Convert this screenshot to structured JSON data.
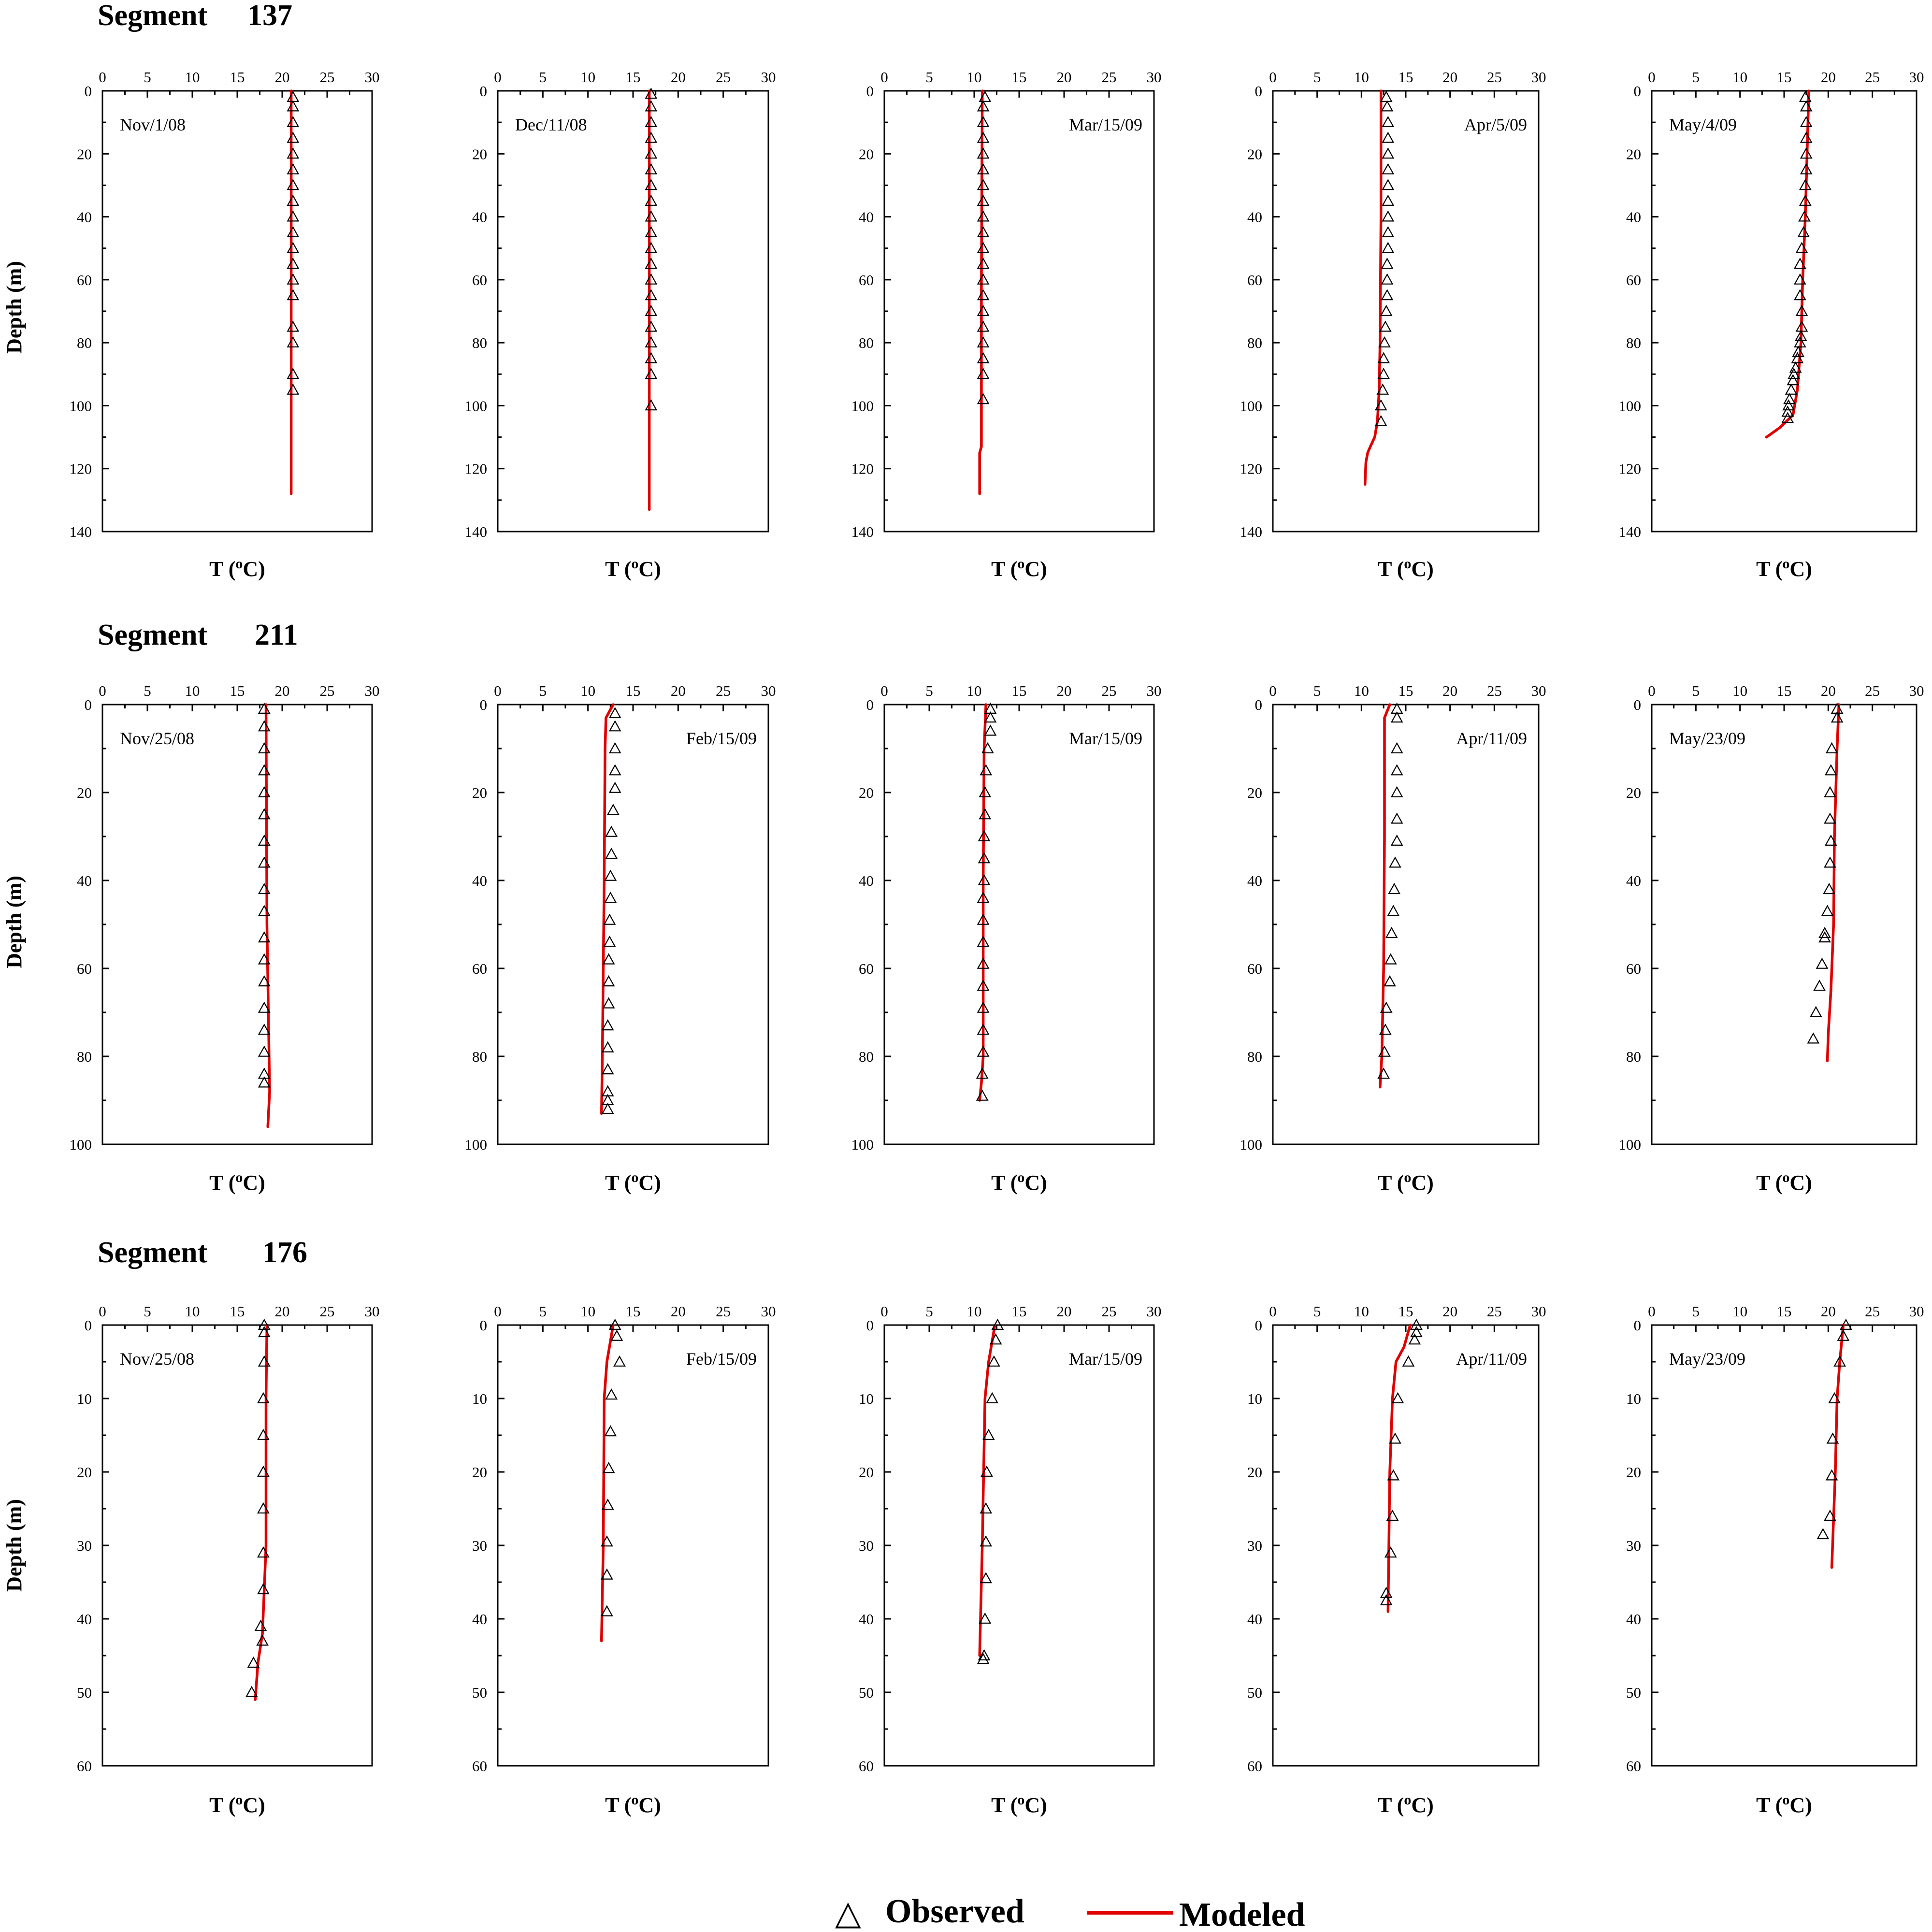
{
  "legend": {
    "observed": "Observed",
    "modeled": "Modeled",
    "observed_marker": "△"
  },
  "axis_text": {
    "xlabel_T": "T",
    "xlabel_paren_open": "(",
    "xlabel_sup": "o",
    "xlabel_unit": "C)",
    "ylabel": "Depth (m)"
  },
  "colors": {
    "modeled": "#e00000",
    "observed": "#000000"
  },
  "chart_data": [
    {
      "type": "line",
      "segment_label": "Segment",
      "segment_number": "137",
      "xlim": [
        0,
        30
      ],
      "ylim": [
        0,
        140
      ],
      "xticks": [
        0,
        5,
        10,
        15,
        20,
        25,
        30
      ],
      "yticks": [
        0,
        20,
        40,
        60,
        80,
        100,
        120,
        140
      ],
      "xlabel": "T (°C)",
      "ylabel": "Depth (m)",
      "panels": [
        {
          "date": "Nov/1/08",
          "date_pos": "left",
          "observed": {
            "T": [
              21.2,
              21.2,
              21.2,
              21.2,
              21.2,
              21.2,
              21.2,
              21.2,
              21.2,
              21.2,
              21.2,
              21.2,
              21.2,
              21.2,
              21.2,
              21.2,
              21.2,
              21.2
            ],
            "depth": [
              2,
              5,
              10,
              15,
              20,
              25,
              30,
              35,
              40,
              45,
              50,
              55,
              60,
              65,
              75,
              80,
              90,
              95
            ]
          },
          "modeled": {
            "T": [
              21,
              21,
              21
            ],
            "depth": [
              0,
              60,
              128
            ]
          }
        },
        {
          "date": "Dec/11/08",
          "date_pos": "left",
          "observed": {
            "T": [
              17,
              17,
              17,
              17,
              17,
              17,
              17,
              17,
              17,
              17,
              17,
              17,
              17,
              17,
              17,
              17,
              17,
              17,
              17,
              17
            ],
            "depth": [
              1,
              5,
              10,
              15,
              20,
              25,
              30,
              35,
              40,
              45,
              50,
              55,
              60,
              65,
              70,
              75,
              80,
              85,
              90,
              100
            ]
          },
          "modeled": {
            "T": [
              16.8,
              16.8
            ],
            "depth": [
              0,
              133
            ]
          }
        },
        {
          "date": "Mar/15/09",
          "date_pos": "right",
          "observed": {
            "T": [
              11.2,
              11,
              11,
              11,
              11,
              11,
              11,
              11,
              11,
              11,
              11,
              11,
              11,
              11,
              11,
              11,
              11,
              11,
              11,
              11
            ],
            "depth": [
              2,
              5,
              10,
              15,
              20,
              25,
              30,
              35,
              40,
              45,
              50,
              55,
              60,
              65,
              70,
              75,
              80,
              85,
              90,
              98
            ]
          },
          "modeled": {
            "T": [
              10.9,
              10.8,
              10.8,
              10.6,
              10.6
            ],
            "depth": [
              0,
              60,
              113,
              115,
              128
            ]
          }
        },
        {
          "date": "Apr/5/09",
          "date_pos": "right",
          "observed": {
            "T": [
              12.8,
              12.9,
              13,
              13,
              13,
              13,
              13,
              13,
              13,
              13,
              13,
              12.9,
              12.9,
              12.9,
              12.8,
              12.7,
              12.6,
              12.5,
              12.5,
              12.4,
              12.2,
              12.2
            ],
            "depth": [
              2,
              5,
              10,
              15,
              20,
              25,
              30,
              35,
              40,
              45,
              50,
              55,
              60,
              65,
              70,
              75,
              80,
              85,
              90,
              95,
              100,
              105
            ]
          },
          "modeled": {
            "T": [
              12.2,
              12.2,
              12.1,
              12,
              11.9,
              11.8,
              11.5,
              11,
              10.7,
              10.5,
              10.4
            ],
            "depth": [
              0,
              40,
              80,
              95,
              100,
              105,
              110,
              113,
              115,
              118,
              125
            ]
          }
        },
        {
          "date": "May/4/09",
          "date_pos": "left",
          "observed": {
            "T": [
              17.4,
              17.5,
              17.5,
              17.5,
              17.5,
              17.5,
              17.4,
              17.4,
              17.3,
              17.2,
              17,
              16.8,
              16.8,
              16.8,
              17,
              17,
              16.9,
              16.8,
              16.6,
              16.5,
              16.3,
              16.1,
              16,
              15.8,
              15.6,
              15.5,
              15.4,
              15.4
            ],
            "depth": [
              2,
              5,
              10,
              15,
              20,
              25,
              30,
              35,
              40,
              45,
              50,
              55,
              60,
              65,
              70,
              75,
              78,
              80,
              83,
              85,
              88,
              90,
              92,
              95,
              98,
              100,
              102,
              104
            ]
          },
          "modeled": {
            "T": [
              17.8,
              17.6,
              17.4,
              17.1,
              16.9,
              16.5,
              16,
              14.5,
              13
            ],
            "depth": [
              0,
              20,
              40,
              60,
              80,
              95,
              103,
              107,
              110
            ]
          }
        }
      ]
    },
    {
      "type": "line",
      "segment_label": "Segment",
      "segment_number": "211",
      "xlim": [
        0,
        30
      ],
      "ylim": [
        0,
        100
      ],
      "xticks": [
        0,
        5,
        10,
        15,
        20,
        25,
        30
      ],
      "yticks": [
        0,
        20,
        40,
        60,
        80,
        100
      ],
      "xlabel": "T (°C)",
      "ylabel": "Depth (m)",
      "panels": [
        {
          "date": "Nov/25/08",
          "date_pos": "left",
          "observed": {
            "T": [
              18,
              18,
              18,
              18,
              18,
              18,
              18,
              18,
              18,
              18,
              18,
              18,
              18,
              18,
              18,
              18,
              18,
              18
            ],
            "depth": [
              1,
              5,
              10,
              15,
              20,
              25,
              31,
              36,
              42,
              47,
              53,
              58,
              63,
              69,
              74,
              79,
              84,
              86
            ]
          },
          "modeled": {
            "T": [
              18.2,
              18.3,
              18.6,
              18.4
            ],
            "depth": [
              0,
              50,
              88,
              96
            ]
          }
        },
        {
          "date": "Feb/15/09",
          "date_pos": "right",
          "observed": {
            "T": [
              13,
              13,
              13,
              13,
              13,
              12.8,
              12.6,
              12.6,
              12.5,
              12.5,
              12.4,
              12.4,
              12.3,
              12.3,
              12.3,
              12.2,
              12.2,
              12.2,
              12.2,
              12.2,
              12.2
            ],
            "depth": [
              2,
              5,
              10,
              15,
              19,
              24,
              29,
              34,
              39,
              44,
              49,
              54,
              58,
              63,
              68,
              73,
              78,
              83,
              88,
              92,
              90
            ]
          },
          "modeled": {
            "T": [
              12.8,
              12,
              11.9,
              11.8,
              11.6,
              11.5
            ],
            "depth": [
              0,
              3,
              10,
              40,
              80,
              93
            ]
          }
        },
        {
          "date": "Mar/15/09",
          "date_pos": "right",
          "observed": {
            "T": [
              11.8,
              11.8,
              11.8,
              11.5,
              11.3,
              11.2,
              11.2,
              11.1,
              11.1,
              11.1,
              11,
              11,
              11,
              11,
              11,
              11,
              11,
              11,
              10.9,
              10.9
            ],
            "depth": [
              1,
              3,
              6,
              10,
              15,
              20,
              25,
              30,
              35,
              40,
              44,
              49,
              54,
              59,
              64,
              69,
              74,
              79,
              84,
              89
            ]
          },
          "modeled": {
            "T": [
              11.3,
              11.1,
              11,
              11,
              10.8,
              10.6
            ],
            "depth": [
              0,
              10,
              40,
              80,
              86,
              90
            ]
          }
        },
        {
          "date": "Apr/11/09",
          "date_pos": "right",
          "observed": {
            "T": [
              14,
              14,
              14,
              14,
              14,
              14,
              14,
              13.8,
              13.7,
              13.6,
              13.4,
              13.3,
              13.2,
              12.8,
              12.7,
              12.6,
              12.5
            ],
            "depth": [
              1,
              3,
              10,
              15,
              20,
              26,
              31,
              36,
              42,
              47,
              52,
              58,
              63,
              69,
              74,
              79,
              84
            ]
          },
          "modeled": {
            "T": [
              13.2,
              12.6,
              12.6,
              12.5,
              12.3,
              12.1
            ],
            "depth": [
              0,
              3,
              30,
              60,
              80,
              87
            ]
          }
        },
        {
          "date": "May/23/09",
          "date_pos": "left",
          "observed": {
            "T": [
              21,
              21,
              20.4,
              20.3,
              20.2,
              20.2,
              20.3,
              20.2,
              20.1,
              19.9,
              19.6,
              19.6,
              19.3,
              19,
              18.6,
              18.3
            ],
            "depth": [
              1,
              3,
              10,
              15,
              20,
              26,
              31,
              36,
              42,
              47,
              52,
              53,
              59,
              64,
              70,
              76
            ]
          },
          "modeled": {
            "T": [
              21.2,
              21,
              20.7,
              20.6,
              20.3,
              20,
              19.9
            ],
            "depth": [
              0,
              10,
              30,
              50,
              65,
              75,
              81
            ]
          }
        }
      ]
    },
    {
      "type": "line",
      "segment_label": "Segment",
      "segment_number": "176",
      "xlim": [
        0,
        30
      ],
      "ylim": [
        0,
        60
      ],
      "xticks": [
        0,
        5,
        10,
        15,
        20,
        25,
        30
      ],
      "yticks": [
        0,
        10,
        20,
        30,
        40,
        50,
        60
      ],
      "xlabel": "T (°C)",
      "ylabel": "Depth (m)",
      "panels": [
        {
          "date": "Nov/25/08",
          "date_pos": "left",
          "observed": {
            "T": [
              18,
              18,
              18,
              17.9,
              17.9,
              17.9,
              17.9,
              17.9,
              17.9,
              17.8,
              17.6,
              16.8,
              16.6
            ],
            "depth": [
              0,
              1,
              5,
              10,
              15,
              20,
              25,
              31,
              36,
              43,
              41,
              46,
              50
            ]
          },
          "modeled": {
            "T": [
              18.3,
              18.2,
              18.2,
              17.8,
              17.3,
              17
            ],
            "depth": [
              0,
              10,
              30,
              42,
              46,
              51
            ]
          }
        },
        {
          "date": "Feb/15/09",
          "date_pos": "right",
          "observed": {
            "T": [
              13,
              13.2,
              13.5,
              12.6,
              12.5,
              12.3,
              12.2,
              12.1,
              12.1,
              12.1
            ],
            "depth": [
              0,
              1.5,
              5,
              9.5,
              14.5,
              19.5,
              24.5,
              29.5,
              34,
              39
            ]
          },
          "modeled": {
            "T": [
              12.8,
              12.1,
              11.8,
              11.7,
              11.5
            ],
            "depth": [
              0,
              5,
              10,
              30,
              43
            ]
          }
        },
        {
          "date": "Mar/15/09",
          "date_pos": "right",
          "observed": {
            "T": [
              12.6,
              12.4,
              12.2,
              12,
              11.6,
              11.4,
              11.3,
              11.3,
              11.3,
              11.2,
              11.1,
              11
            ],
            "depth": [
              0,
              2,
              5,
              10,
              15,
              20,
              25,
              29.5,
              34.5,
              40,
              45,
              45.5
            ]
          },
          "modeled": {
            "T": [
              12.3,
              11.6,
              11.2,
              10.9,
              10.6
            ],
            "depth": [
              0,
              5,
              10,
              30,
              45
            ]
          }
        },
        {
          "date": "Apr/11/09",
          "date_pos": "right",
          "observed": {
            "T": [
              16.2,
              16.2,
              16,
              15.3,
              14.1,
              13.8,
              13.6,
              13.5,
              13.3,
              12.8,
              12.8
            ],
            "depth": [
              0,
              1,
              2,
              5,
              10,
              15.5,
              20.5,
              26,
              31,
              36.5,
              37.5
            ]
          },
          "modeled": {
            "T": [
              15.5,
              14.8,
              13.9,
              13.5,
              13.2,
              13
            ],
            "depth": [
              0,
              3,
              5,
              10,
              20,
              39
            ]
          }
        },
        {
          "date": "May/23/09",
          "date_pos": "left",
          "observed": {
            "T": [
              22,
              21.7,
              21.3,
              20.7,
              20.5,
              20.4,
              20.2,
              19.4
            ],
            "depth": [
              0,
              1.5,
              5,
              10,
              15.5,
              20.5,
              26,
              28.5
            ]
          },
          "modeled": {
            "T": [
              21.7,
              21.3,
              21,
              20.8,
              20.4
            ],
            "depth": [
              0,
              5,
              10,
              20,
              33
            ]
          }
        }
      ]
    }
  ]
}
